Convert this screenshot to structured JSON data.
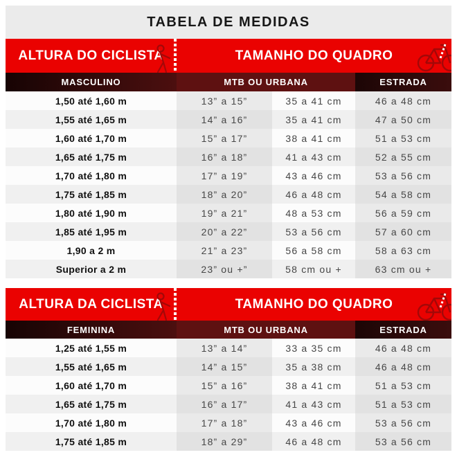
{
  "title": "TABELA DE MEDIDAS",
  "colors": {
    "accent_red": "#ea0201",
    "maroon": "#5e1111",
    "dark_cell": "#1c0606",
    "band_gray": "#ebebeb",
    "row_white": "#fcfcfc",
    "row_gray": "#f0f0f0",
    "stripe_gray": "#eaeaea",
    "text_dark": "#101010",
    "text_data": "#464646",
    "icon_stroke": "#a30808"
  },
  "icons": [
    "ruler-icon",
    "cyclist-figure-icon",
    "bicycle-icon"
  ],
  "tables": [
    {
      "header_left": "ALTURA DO CICLISTA",
      "header_right": "TAMANHO DO QUADRO",
      "sub_left": "MASCULINO",
      "sub_mid": "MTB OU URBANA",
      "sub_right": "ESTRADA",
      "rows": [
        [
          "1,50 até 1,60 m",
          "13” a 15”",
          "35 a 41 cm",
          "46 a 48 cm"
        ],
        [
          "1,55 até 1,65 m",
          "14” a 16”",
          "35 a 41 cm",
          "47 a 50 cm"
        ],
        [
          "1,60 até 1,70 m",
          "15” a 17”",
          "38 a 41 cm",
          "51 a 53 cm"
        ],
        [
          "1,65 até 1,75 m",
          "16” a 18”",
          "41 a 43 cm",
          "52 a 55 cm"
        ],
        [
          "1,70 até 1,80 m",
          "17” a 19”",
          "43 a 46 cm",
          "53 a 56 cm"
        ],
        [
          "1,75 até 1,85 m",
          "18” a 20”",
          "46 a 48 cm",
          "54 a 58 cm"
        ],
        [
          "1,80 até 1,90 m",
          "19” a 21”",
          "48 a 53 cm",
          "56 a 59 cm"
        ],
        [
          "1,85 até 1,95 m",
          "20” a 22”",
          "53 a 56 cm",
          "57 a 60 cm"
        ],
        [
          "1,90 a 2 m",
          "21” a 23”",
          "56 a 58 cm",
          "58 a 63 cm"
        ],
        [
          "Superior a 2 m",
          "23” ou +”",
          "58 cm ou +",
          "63 cm ou +"
        ]
      ]
    },
    {
      "header_left": "ALTURA DA CICLISTA",
      "header_right": "TAMANHO DO QUADRO",
      "sub_left": "FEMININA",
      "sub_mid": "MTB OU URBANA",
      "sub_right": "ESTRADA",
      "rows": [
        [
          "1,25 até 1,55 m",
          "13” a 14”",
          "33 a 35 cm",
          "46 a 48 cm"
        ],
        [
          "1,55 até 1,65 m",
          "14” a 15”",
          "35 a 38 cm",
          "46 a 48 cm"
        ],
        [
          "1,60 até 1,70 m",
          "15” a 16”",
          "38 a 41 cm",
          "51 a 53 cm"
        ],
        [
          "1,65 até 1,75 m",
          "16” a 17”",
          "41 a 43 cm",
          "51 a 53 cm"
        ],
        [
          "1,70 até 1,80 m",
          "17” a 18”",
          "43 a 46 cm",
          "53 a 56 cm"
        ],
        [
          "1,75 até 1,85 m",
          "18” a 29”",
          "46 a 48 cm",
          "53 a 56 cm"
        ]
      ]
    }
  ]
}
